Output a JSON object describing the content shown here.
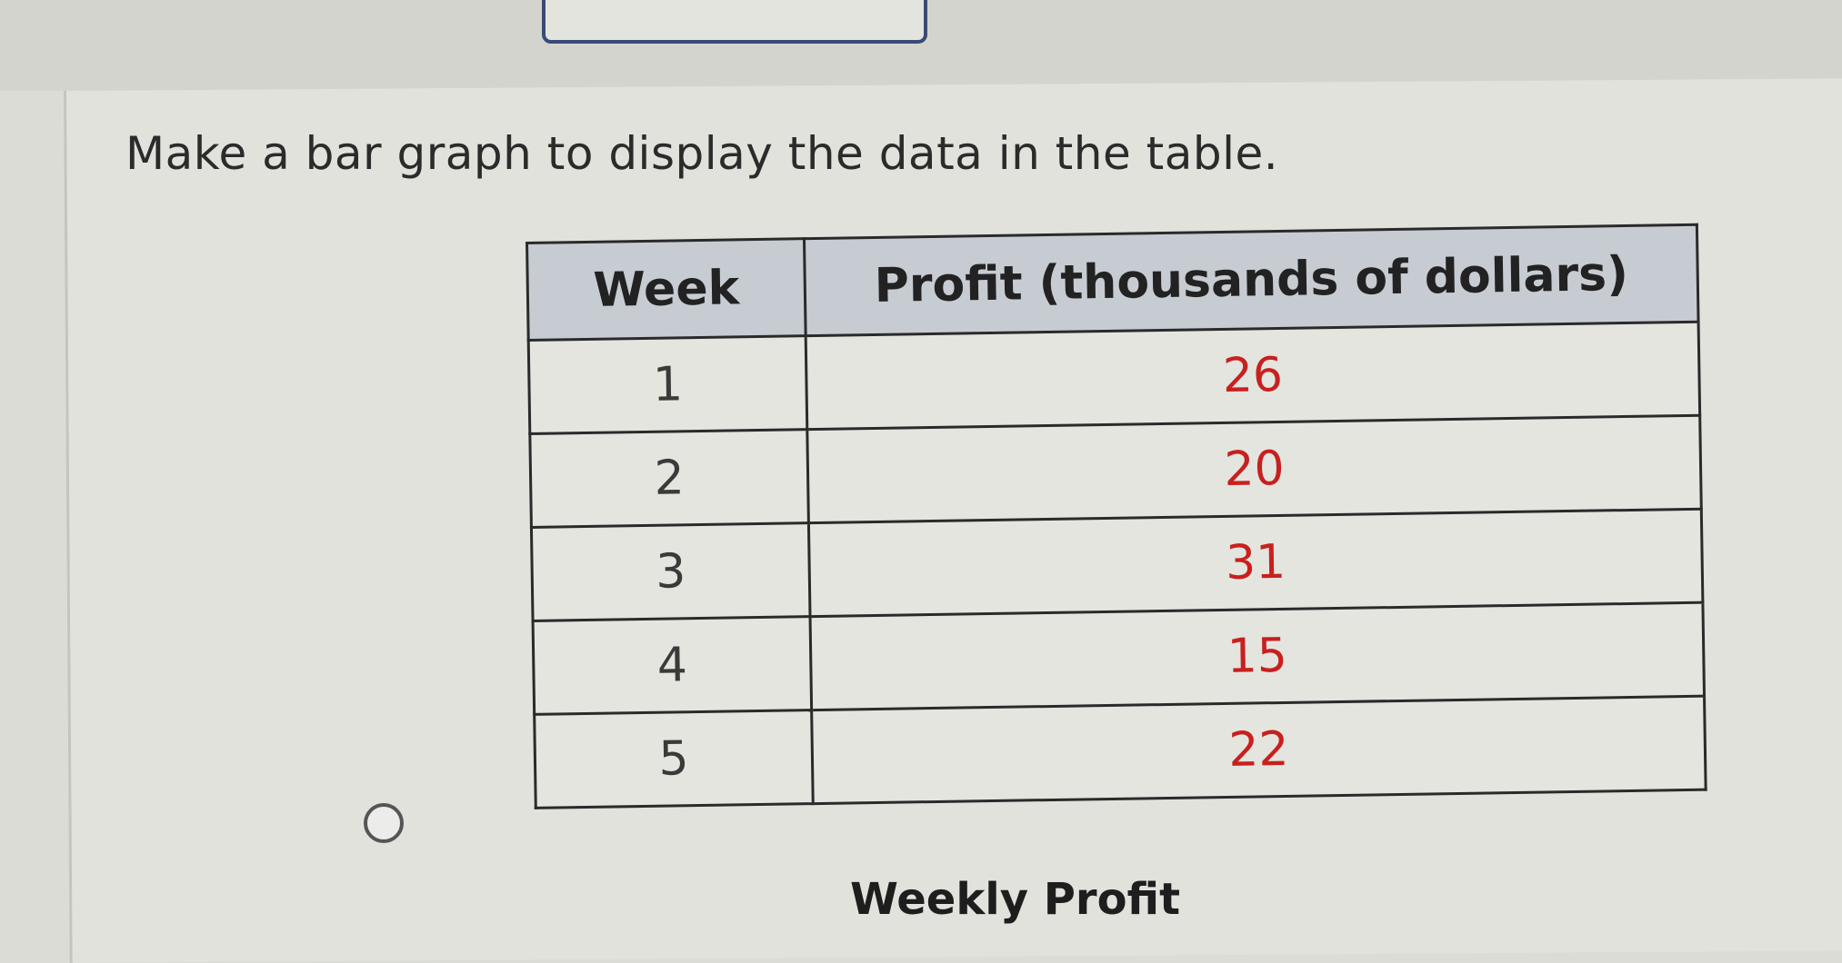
{
  "question": {
    "prompt": "Make a bar graph to display the data in the table."
  },
  "table": {
    "headers": [
      "Week",
      "Profit (thousands of dollars)"
    ],
    "rows": [
      {
        "week": "1",
        "profit": "26"
      },
      {
        "week": "2",
        "profit": "20"
      },
      {
        "week": "3",
        "profit": "31"
      },
      {
        "week": "4",
        "profit": "15"
      },
      {
        "week": "5",
        "profit": "22"
      }
    ]
  },
  "answer_option": {
    "graph_title": "Weekly Profit"
  },
  "colors": {
    "header_background": "#c6ccd2",
    "profit_value": "#c8201e",
    "answer_box_border": "#3a4a78"
  }
}
